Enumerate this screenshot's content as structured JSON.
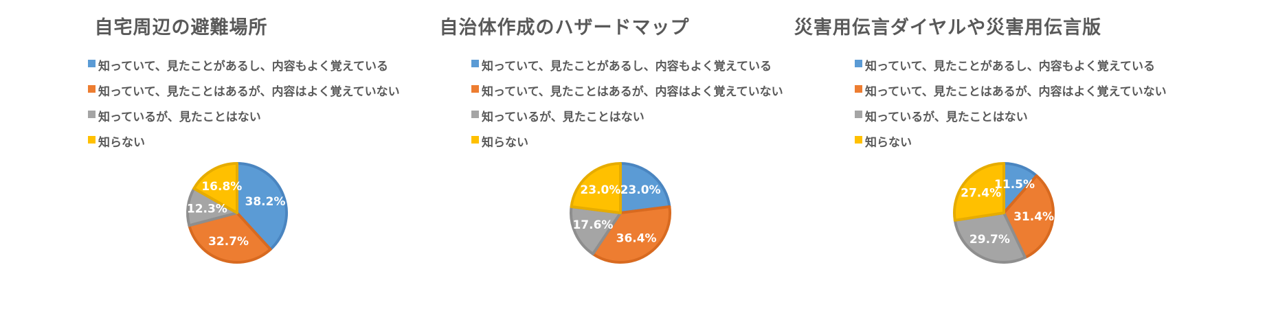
{
  "legend_labels": [
    "知っていて、見たことがあるし、内容もよく覚えている",
    "知っていて、見たことはあるが、内容はよく覚えていない",
    "知っているが、見たことはない",
    "知らない"
  ],
  "colors": [
    "#5B9BD5",
    "#ED7D31",
    "#A5A5A5",
    "#FFC000"
  ],
  "stroke_colors": [
    "#4A85C0",
    "#D86A20",
    "#8E8E8E",
    "#E6AC00"
  ],
  "chart_data": [
    {
      "type": "pie",
      "title": "自宅周辺の避難場所",
      "categories": [
        "知っていて、見たことがあるし、内容もよく覚えている",
        "知っていて、見たことはあるが、内容はよく覚えていない",
        "知っているが、見たことはない",
        "知らない"
      ],
      "values": [
        38.2,
        32.7,
        12.3,
        16.8
      ],
      "labels": [
        "38.2%",
        "32.7%",
        "12.3%",
        "16.8%"
      ],
      "legend_position": "top"
    },
    {
      "type": "pie",
      "title": "自治体作成のハザードマップ",
      "categories": [
        "知っていて、見たことがあるし、内容もよく覚えている",
        "知っていて、見たことはあるが、内容はよく覚えていない",
        "知っているが、見たことはない",
        "知らない"
      ],
      "values": [
        23.0,
        36.4,
        17.6,
        23.0
      ],
      "labels": [
        "23.0%",
        "36.4%",
        "17.6%",
        "23.0%"
      ],
      "legend_position": "top"
    },
    {
      "type": "pie",
      "title": "災害用伝言ダイヤルや災害用伝言版",
      "categories": [
        "知っていて、見たことがあるし、内容もよく覚えている",
        "知っていて、見たことはあるが、内容はよく覚えていない",
        "知っているが、見たことはない",
        "知らない"
      ],
      "values": [
        11.5,
        31.4,
        29.7,
        27.4
      ],
      "labels": [
        "11.5%",
        "31.4%",
        "29.7%",
        "27.4%"
      ],
      "legend_position": "top"
    }
  ]
}
